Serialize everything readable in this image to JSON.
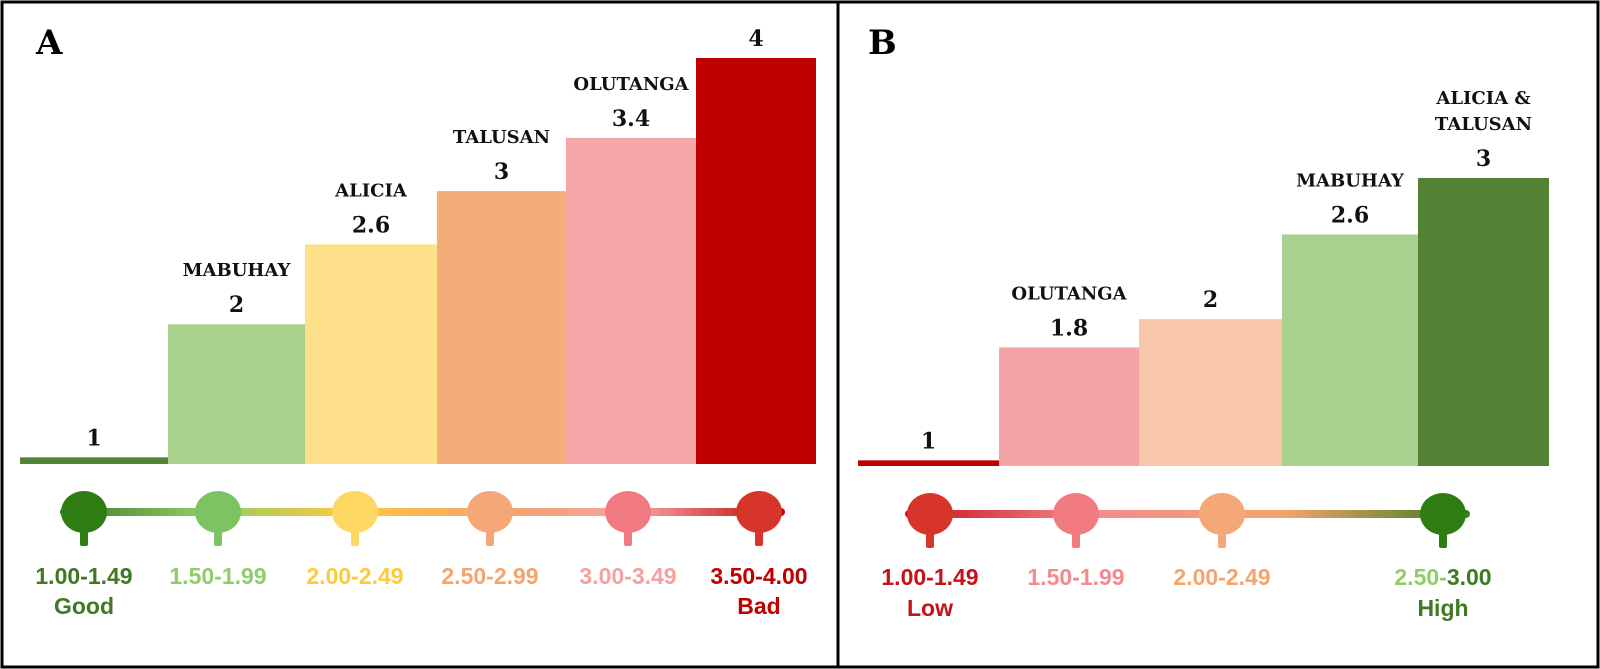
{
  "chart_data": [
    {
      "type": "bar",
      "panel": "A",
      "categories": [
        "",
        "MABUHAY",
        "ALICIA",
        "TALUSAN",
        "OLUTANGA",
        ""
      ],
      "values": [
        1,
        2,
        2.6,
        3,
        3.4,
        4
      ],
      "value_labels": [
        "1",
        "2",
        "2.6",
        "3",
        "3.4",
        "4"
      ],
      "bar_colors": [
        "#548235",
        "#a9d18e",
        "#ffe08a",
        "#f4ac78",
        "#f4a6a8",
        "#c00000"
      ],
      "ylim": [
        0.95,
        4.05
      ],
      "scale": [
        {
          "range": "1.00-1.49",
          "word": "Good",
          "color": "#3f7a22",
          "marker": "#2e7d12"
        },
        {
          "range": "1.50-1.99",
          "word": "",
          "color": "#8fcc6a",
          "marker": "#7cc462"
        },
        {
          "range": "2.00-2.49",
          "word": "",
          "color": "#ffc93c",
          "marker": "#ffd863"
        },
        {
          "range": "2.50-2.99",
          "word": "",
          "color": "#f4a46c",
          "marker": "#f5a877"
        },
        {
          "range": "3.00-3.49",
          "word": "",
          "color": "#f4a1a1",
          "marker": "#f27b82"
        },
        {
          "range": "3.50-4.00",
          "word": "Bad",
          "color": "#c00000",
          "marker": "#d8352a"
        }
      ]
    },
    {
      "type": "bar",
      "panel": "B",
      "categories": [
        "",
        "OLUTANGA",
        "",
        "MABUHAY",
        "ALICIA &|TALUSAN"
      ],
      "values": [
        1,
        1.8,
        2,
        2.6,
        3
      ],
      "value_labels": [
        "1",
        "1.8",
        "2",
        "2.6",
        "3"
      ],
      "bar_colors": [
        "#c00000",
        "#f4a3a6",
        "#f8c6a8",
        "#a9d18e",
        "#548235"
      ],
      "ylim": [
        0.96,
        3.05
      ],
      "scale": [
        {
          "range": "1.00-1.49",
          "word": "Low",
          "color": "#c8101a",
          "marker": "#d8352a"
        },
        {
          "range": "1.50-1.99",
          "word": "",
          "color": "#f48a8e",
          "marker": "#f27b82"
        },
        {
          "range": "2.00-2.49",
          "word": "",
          "color": "#f4a46c",
          "marker": "#f5a877"
        },
        {
          "range": "2.50-3.00",
          "range_parts": [
            "2.50-",
            "3.00"
          ],
          "range_colors": [
            "#8fcc6a",
            "#3f7a22"
          ],
          "word": "High",
          "color": "#3f7a22",
          "marker": "#2e7d12"
        }
      ]
    }
  ]
}
